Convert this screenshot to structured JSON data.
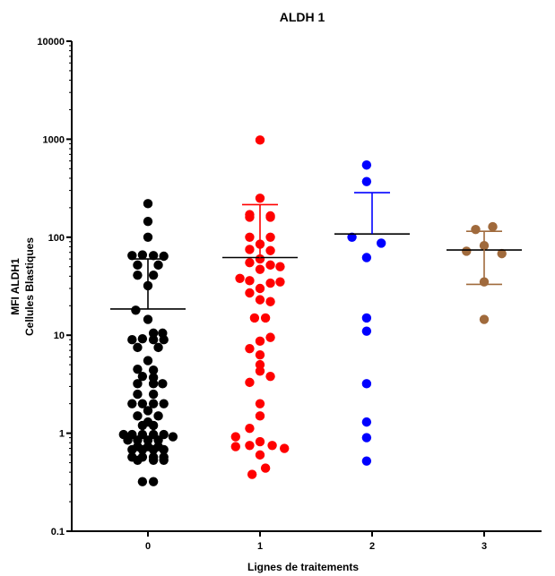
{
  "chart_data": {
    "type": "scatter",
    "title": "ALDH 1",
    "xlabel": "Lignes de traitements",
    "ylabel_line1": "MFI ALDH1",
    "ylabel_line2": "Cellules Blastiques",
    "yscale": "log",
    "ylim": [
      0.1,
      10000
    ],
    "yticks": [
      {
        "value": 10000,
        "label": "10000"
      },
      {
        "value": 1000,
        "label": "1000"
      },
      {
        "value": 100,
        "label": "100"
      },
      {
        "value": 10,
        "label": "10"
      },
      {
        "value": 1,
        "label": "1"
      },
      {
        "value": 0.1,
        "label": "0.1"
      }
    ],
    "categories": [
      "0",
      "1",
      "2",
      "3"
    ],
    "grid": false,
    "legend": "none",
    "series": [
      {
        "category": "0",
        "color": "#000000",
        "mean": 18.5,
        "error_low": 18.5,
        "error_high": 60,
        "points": [
          {
            "dx": 0,
            "y": 220
          },
          {
            "dx": 0,
            "y": 145
          },
          {
            "dx": 0,
            "y": 100
          },
          {
            "dx": -0.26,
            "y": 65
          },
          {
            "dx": -0.09,
            "y": 66
          },
          {
            "dx": 0.09,
            "y": 65
          },
          {
            "dx": 0.26,
            "y": 64
          },
          {
            "dx": -0.17,
            "y": 52
          },
          {
            "dx": 0.17,
            "y": 52
          },
          {
            "dx": -0.17,
            "y": 41
          },
          {
            "dx": 0.09,
            "y": 41
          },
          {
            "dx": 0,
            "y": 32
          },
          {
            "dx": -0.2,
            "y": 18
          },
          {
            "dx": 0,
            "y": 14.5
          },
          {
            "dx": 0.09,
            "y": 10.5
          },
          {
            "dx": 0.24,
            "y": 10.5
          },
          {
            "dx": -0.26,
            "y": 9
          },
          {
            "dx": -0.09,
            "y": 9.2
          },
          {
            "dx": 0.09,
            "y": 9
          },
          {
            "dx": 0.26,
            "y": 9
          },
          {
            "dx": -0.17,
            "y": 7.5
          },
          {
            "dx": 0.17,
            "y": 7.5
          },
          {
            "dx": 0,
            "y": 5.5
          },
          {
            "dx": -0.17,
            "y": 4.5
          },
          {
            "dx": 0.09,
            "y": 4.4
          },
          {
            "dx": -0.09,
            "y": 3.8
          },
          {
            "dx": 0.09,
            "y": 3.7
          },
          {
            "dx": -0.17,
            "y": 3.2
          },
          {
            "dx": 0.09,
            "y": 3.2
          },
          {
            "dx": 0.24,
            "y": 3.2
          },
          {
            "dx": -0.17,
            "y": 2.5
          },
          {
            "dx": 0.09,
            "y": 2.5
          },
          {
            "dx": -0.26,
            "y": 2
          },
          {
            "dx": -0.09,
            "y": 2
          },
          {
            "dx": 0.09,
            "y": 2
          },
          {
            "dx": 0.26,
            "y": 2
          },
          {
            "dx": 0,
            "y": 1.7
          },
          {
            "dx": -0.17,
            "y": 1.5
          },
          {
            "dx": 0.17,
            "y": 1.5
          },
          {
            "dx": 0,
            "y": 1.3
          },
          {
            "dx": -0.09,
            "y": 1.2
          },
          {
            "dx": 0.09,
            "y": 1.2
          },
          {
            "dx": -0.4,
            "y": 0.97
          },
          {
            "dx": -0.26,
            "y": 0.97
          },
          {
            "dx": -0.09,
            "y": 0.97
          },
          {
            "dx": 0.09,
            "y": 0.97
          },
          {
            "dx": 0.26,
            "y": 0.97
          },
          {
            "dx": -0.33,
            "y": 0.85
          },
          {
            "dx": -0.17,
            "y": 0.85
          },
          {
            "dx": 0,
            "y": 0.85
          },
          {
            "dx": 0.17,
            "y": 0.85
          },
          {
            "dx": 0.41,
            "y": 0.92
          },
          {
            "dx": -0.17,
            "y": 0.73
          },
          {
            "dx": 0,
            "y": 0.73
          },
          {
            "dx": 0.17,
            "y": 0.73
          },
          {
            "dx": -0.26,
            "y": 0.68
          },
          {
            "dx": -0.09,
            "y": 0.68
          },
          {
            "dx": 0.09,
            "y": 0.68
          },
          {
            "dx": 0.26,
            "y": 0.68
          },
          {
            "dx": -0.26,
            "y": 0.57
          },
          {
            "dx": -0.09,
            "y": 0.57
          },
          {
            "dx": 0.09,
            "y": 0.57
          },
          {
            "dx": 0.26,
            "y": 0.57
          },
          {
            "dx": -0.17,
            "y": 0.53
          },
          {
            "dx": 0.09,
            "y": 0.53
          },
          {
            "dx": 0.26,
            "y": 0.53
          },
          {
            "dx": -0.09,
            "y": 0.32
          },
          {
            "dx": 0.09,
            "y": 0.32
          }
        ]
      },
      {
        "category": "1",
        "color": "#ff0000",
        "mean": 62,
        "error_low": 62,
        "error_high": 215,
        "points": [
          {
            "dx": 0,
            "y": 980
          },
          {
            "dx": 0,
            "y": 250
          },
          {
            "dx": -0.17,
            "y": 170
          },
          {
            "dx": 0.17,
            "y": 165
          },
          {
            "dx": -0.17,
            "y": 160
          },
          {
            "dx": 0.17,
            "y": 160
          },
          {
            "dx": -0.17,
            "y": 100
          },
          {
            "dx": 0.17,
            "y": 100
          },
          {
            "dx": 0,
            "y": 85
          },
          {
            "dx": -0.17,
            "y": 75
          },
          {
            "dx": 0.17,
            "y": 73
          },
          {
            "dx": 0,
            "y": 60
          },
          {
            "dx": -0.17,
            "y": 55
          },
          {
            "dx": 0.17,
            "y": 52
          },
          {
            "dx": 0.33,
            "y": 50
          },
          {
            "dx": 0,
            "y": 47
          },
          {
            "dx": -0.33,
            "y": 38
          },
          {
            "dx": -0.17,
            "y": 36
          },
          {
            "dx": 0.17,
            "y": 34
          },
          {
            "dx": 0.33,
            "y": 35
          },
          {
            "dx": 0,
            "y": 30
          },
          {
            "dx": -0.17,
            "y": 27
          },
          {
            "dx": 0,
            "y": 23
          },
          {
            "dx": 0.17,
            "y": 22
          },
          {
            "dx": -0.09,
            "y": 15
          },
          {
            "dx": 0.09,
            "y": 15
          },
          {
            "dx": 0.17,
            "y": 9.5
          },
          {
            "dx": 0,
            "y": 8.7
          },
          {
            "dx": -0.17,
            "y": 7.3
          },
          {
            "dx": 0,
            "y": 6.3
          },
          {
            "dx": 0,
            "y": 5
          },
          {
            "dx": 0,
            "y": 4.3
          },
          {
            "dx": 0.17,
            "y": 3.8
          },
          {
            "dx": -0.17,
            "y": 3.3
          },
          {
            "dx": 0,
            "y": 2
          },
          {
            "dx": 0,
            "y": 1.5
          },
          {
            "dx": -0.17,
            "y": 1.12
          },
          {
            "dx": -0.4,
            "y": 0.92
          },
          {
            "dx": -0.4,
            "y": 0.73
          },
          {
            "dx": -0.17,
            "y": 0.75
          },
          {
            "dx": 0,
            "y": 0.82
          },
          {
            "dx": 0.2,
            "y": 0.75
          },
          {
            "dx": 0.4,
            "y": 0.7
          },
          {
            "dx": 0,
            "y": 0.6
          },
          {
            "dx": 0.09,
            "y": 0.44
          },
          {
            "dx": -0.13,
            "y": 0.38
          }
        ]
      },
      {
        "category": "2",
        "color": "#0000ff",
        "mean": 108,
        "error_low": 108,
        "error_high": 285,
        "points": [
          {
            "dx": -0.09,
            "y": 545
          },
          {
            "dx": -0.09,
            "y": 370
          },
          {
            "dx": -0.33,
            "y": 100
          },
          {
            "dx": 0.15,
            "y": 87
          },
          {
            "dx": -0.09,
            "y": 62
          },
          {
            "dx": -0.09,
            "y": 15
          },
          {
            "dx": -0.09,
            "y": 11
          },
          {
            "dx": -0.09,
            "y": 3.2
          },
          {
            "dx": -0.09,
            "y": 1.3
          },
          {
            "dx": -0.09,
            "y": 0.9
          },
          {
            "dx": -0.09,
            "y": 0.52
          }
        ]
      },
      {
        "category": "3",
        "color": "#a06a3c",
        "mean": 74,
        "error_low": 33,
        "error_high": 115,
        "points": [
          {
            "dx": -0.14,
            "y": 120
          },
          {
            "dx": 0.14,
            "y": 128
          },
          {
            "dx": 0,
            "y": 82
          },
          {
            "dx": -0.29,
            "y": 72
          },
          {
            "dx": 0.29,
            "y": 68
          },
          {
            "dx": 0,
            "y": 35
          },
          {
            "dx": 0,
            "y": 14.5
          }
        ]
      }
    ]
  }
}
